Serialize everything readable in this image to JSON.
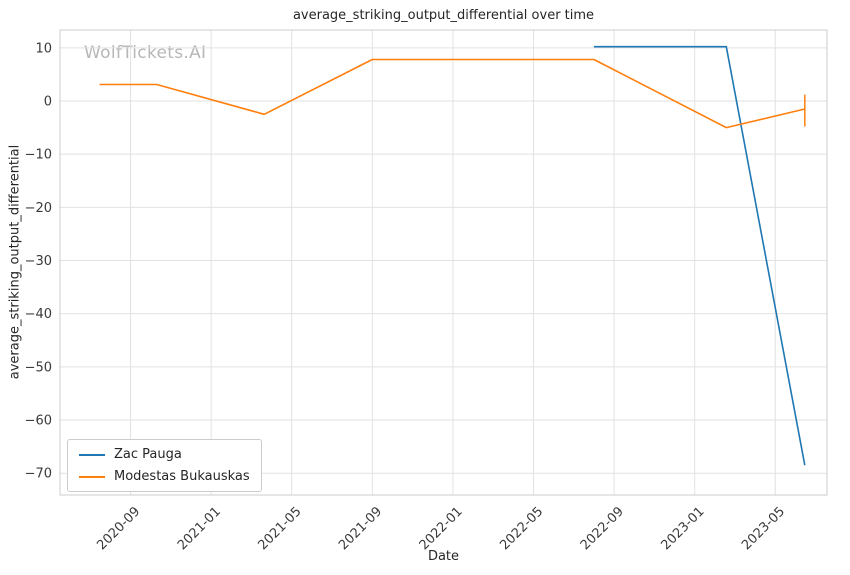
{
  "watermark": "WolfTickets.AI",
  "chart_data": {
    "type": "line",
    "title": "average_striking_output_differential over time",
    "xlabel": "Date",
    "ylabel": "average_striking_output_differential",
    "grid": true,
    "legend_position": "lower-left",
    "x_ticks": [
      "2020-09",
      "2021-01",
      "2021-05",
      "2021-09",
      "2022-01",
      "2022-05",
      "2022-09",
      "2023-01",
      "2023-05"
    ],
    "y_ticks": [
      10,
      0,
      -10,
      -20,
      -30,
      -40,
      -50,
      -60,
      -70
    ],
    "xlim": [
      "2020-05-16",
      "2023-07-18"
    ],
    "ylim": [
      -74.1,
      13.35
    ],
    "colors": {
      "grid": "#e2e2e2",
      "frame": "#cccccc",
      "tick_text": "#3a3a3a",
      "title_text": "#262626",
      "watermark": "#b7b7b7",
      "series_blue": "#1f77b4",
      "series_orange": "#ff7f0e"
    },
    "series": [
      {
        "name": "Zac Pauga",
        "color": "#1f77b4",
        "points": [
          [
            "2022-08-01",
            10.2
          ],
          [
            "2023-02-18",
            10.2
          ],
          [
            "2023-06-15",
            -68.5
          ]
        ]
      },
      {
        "name": "Modestas Bukauskas",
        "color": "#ff7f0e",
        "points": [
          [
            "2020-07-15",
            3.1
          ],
          [
            "2020-10-10",
            3.1
          ],
          [
            "2021-03-20",
            -2.5
          ],
          [
            "2021-09-01",
            7.8
          ],
          [
            "2022-08-01",
            7.8
          ],
          [
            "2023-02-18",
            -5.0
          ],
          [
            "2023-06-15",
            -1.5
          ]
        ],
        "error_bars": [
          {
            "x": "2023-06-15",
            "low": -4.8,
            "high": 1.2
          }
        ]
      }
    ]
  }
}
